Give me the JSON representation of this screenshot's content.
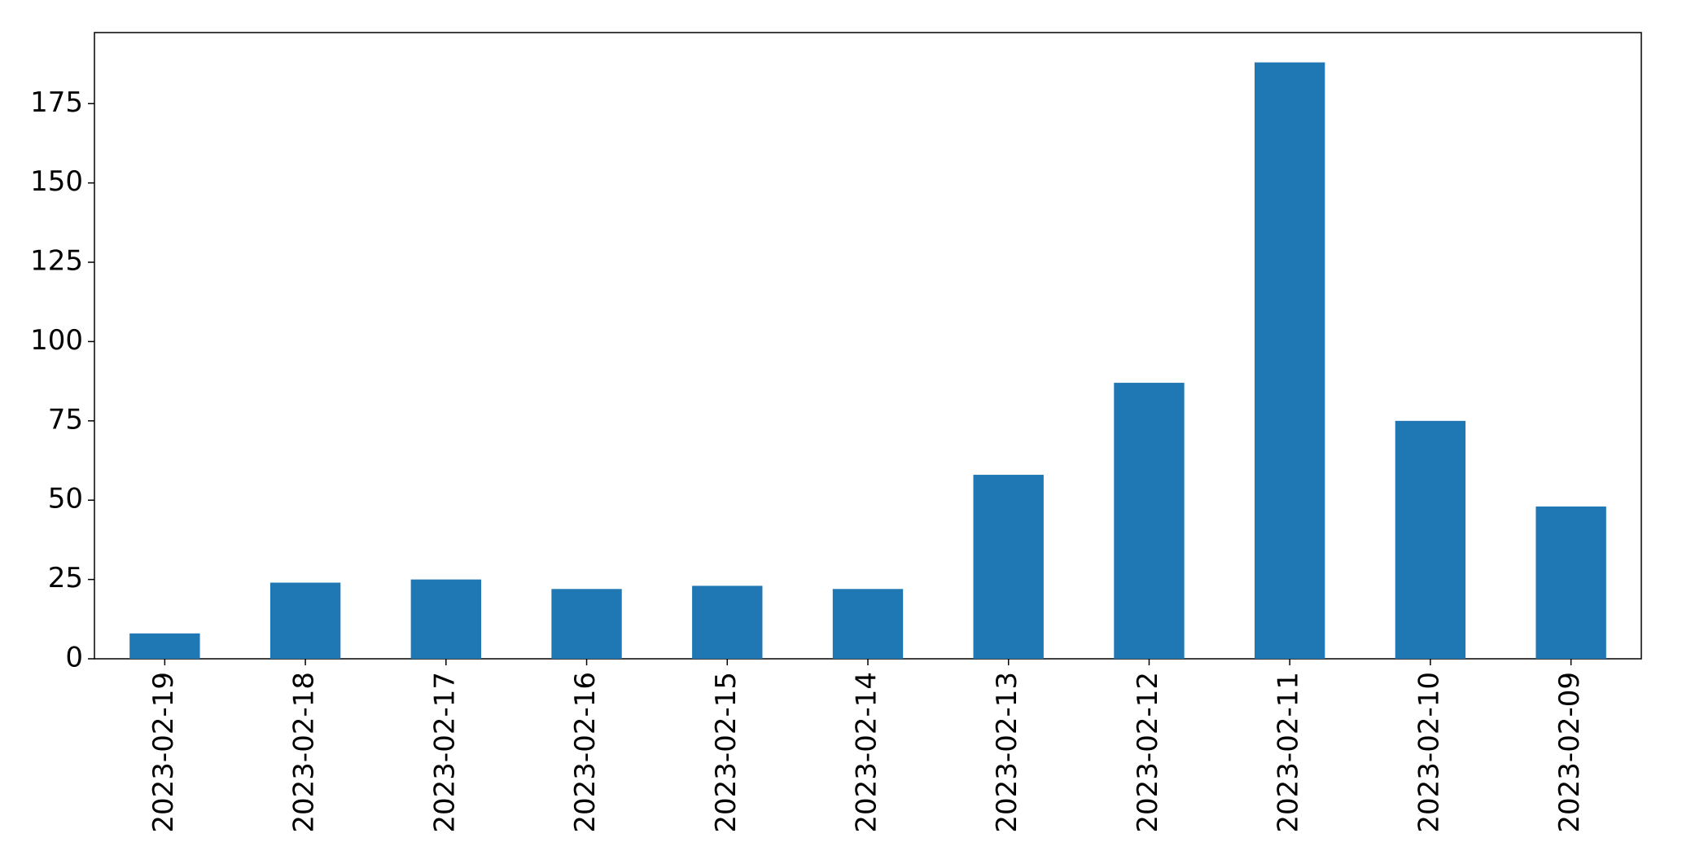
{
  "chart_data": {
    "type": "bar",
    "categories": [
      "2023-02-19",
      "2023-02-18",
      "2023-02-17",
      "2023-02-16",
      "2023-02-15",
      "2023-02-14",
      "2023-02-13",
      "2023-02-12",
      "2023-02-11",
      "2023-02-10",
      "2023-02-09"
    ],
    "values": [
      8,
      24,
      25,
      22,
      23,
      22,
      58,
      87,
      188,
      75,
      48
    ],
    "color": "#1f77b4",
    "ylim": [
      0,
      197.4
    ],
    "yticks": [
      0,
      25,
      50,
      75,
      100,
      125,
      150,
      175
    ],
    "grid": false
  }
}
